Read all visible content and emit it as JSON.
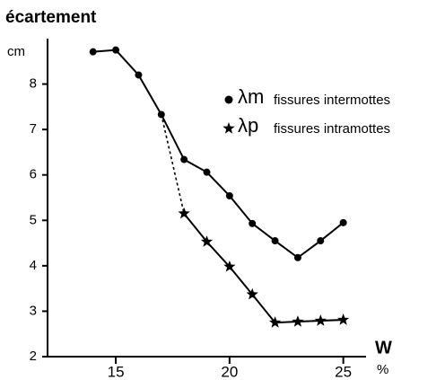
{
  "chart_data": {
    "type": "line",
    "title": "écartement",
    "y_label": "cm",
    "x_label": "W",
    "x_unit": "%",
    "x": [
      14,
      15,
      16,
      17,
      18,
      19,
      20,
      21,
      22,
      23,
      24,
      25
    ],
    "series": [
      {
        "name": "λm",
        "label": "fissures intermottes",
        "marker": "circle",
        "color": "#000000",
        "values": [
          8.71,
          8.75,
          8.2,
          7.33,
          6.34,
          6.06,
          5.54,
          4.93,
          4.55,
          4.18,
          4.55,
          4.95
        ]
      },
      {
        "name": "λp",
        "label": "fissures intramottes",
        "marker": "star",
        "color": "#000000",
        "values": [
          null,
          null,
          null,
          7.33,
          5.15,
          4.53,
          3.98,
          3.37,
          2.75,
          2.77,
          2.79,
          2.81
        ]
      }
    ],
    "xlim": [
      12,
      26
    ],
    "ylim": [
      2,
      9
    ],
    "xticks": [
      15,
      20,
      25
    ],
    "yticks": [
      2,
      3,
      4,
      5,
      6,
      7,
      8
    ]
  }
}
